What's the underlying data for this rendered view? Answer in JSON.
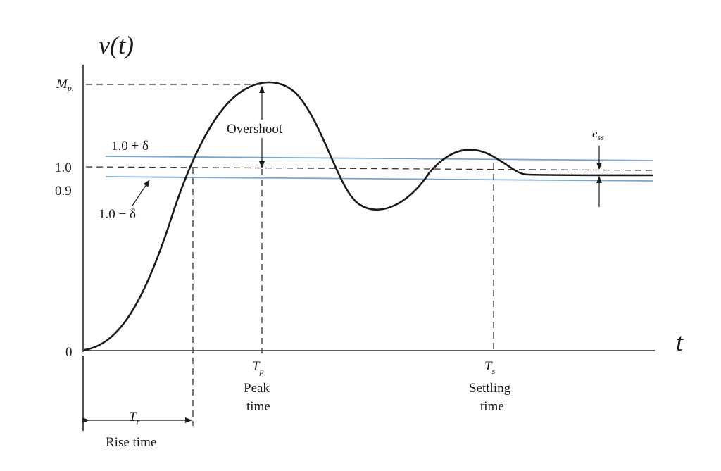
{
  "diagram": {
    "y_axis_label": "v(t)",
    "x_axis_label": "t",
    "y_ticks": {
      "mp_main": "M",
      "mp_sub": "p.",
      "one": "1.0",
      "zero_nine": "0.9",
      "zero": "0"
    },
    "band_labels": {
      "upper": "1.0 + δ",
      "lower": "1.0 − δ"
    },
    "annotations": {
      "overshoot": "Overshoot",
      "ess_main": "e",
      "ess_sub": "ss"
    },
    "x_markers": {
      "tp_main": "T",
      "tp_sub": "p",
      "tp_caption_1": "Peak",
      "tp_caption_2": "time",
      "ts_main": "T",
      "ts_sub": "s",
      "ts_caption_1": "Settling",
      "ts_caption_2": "time",
      "tr_main": "T",
      "tr_sub": "r",
      "tr_caption": "Rise time"
    },
    "colors": {
      "curve": "#1a1a1a",
      "tolerance_band": "#7aa7cf",
      "axes": "#2a2a2a"
    }
  }
}
